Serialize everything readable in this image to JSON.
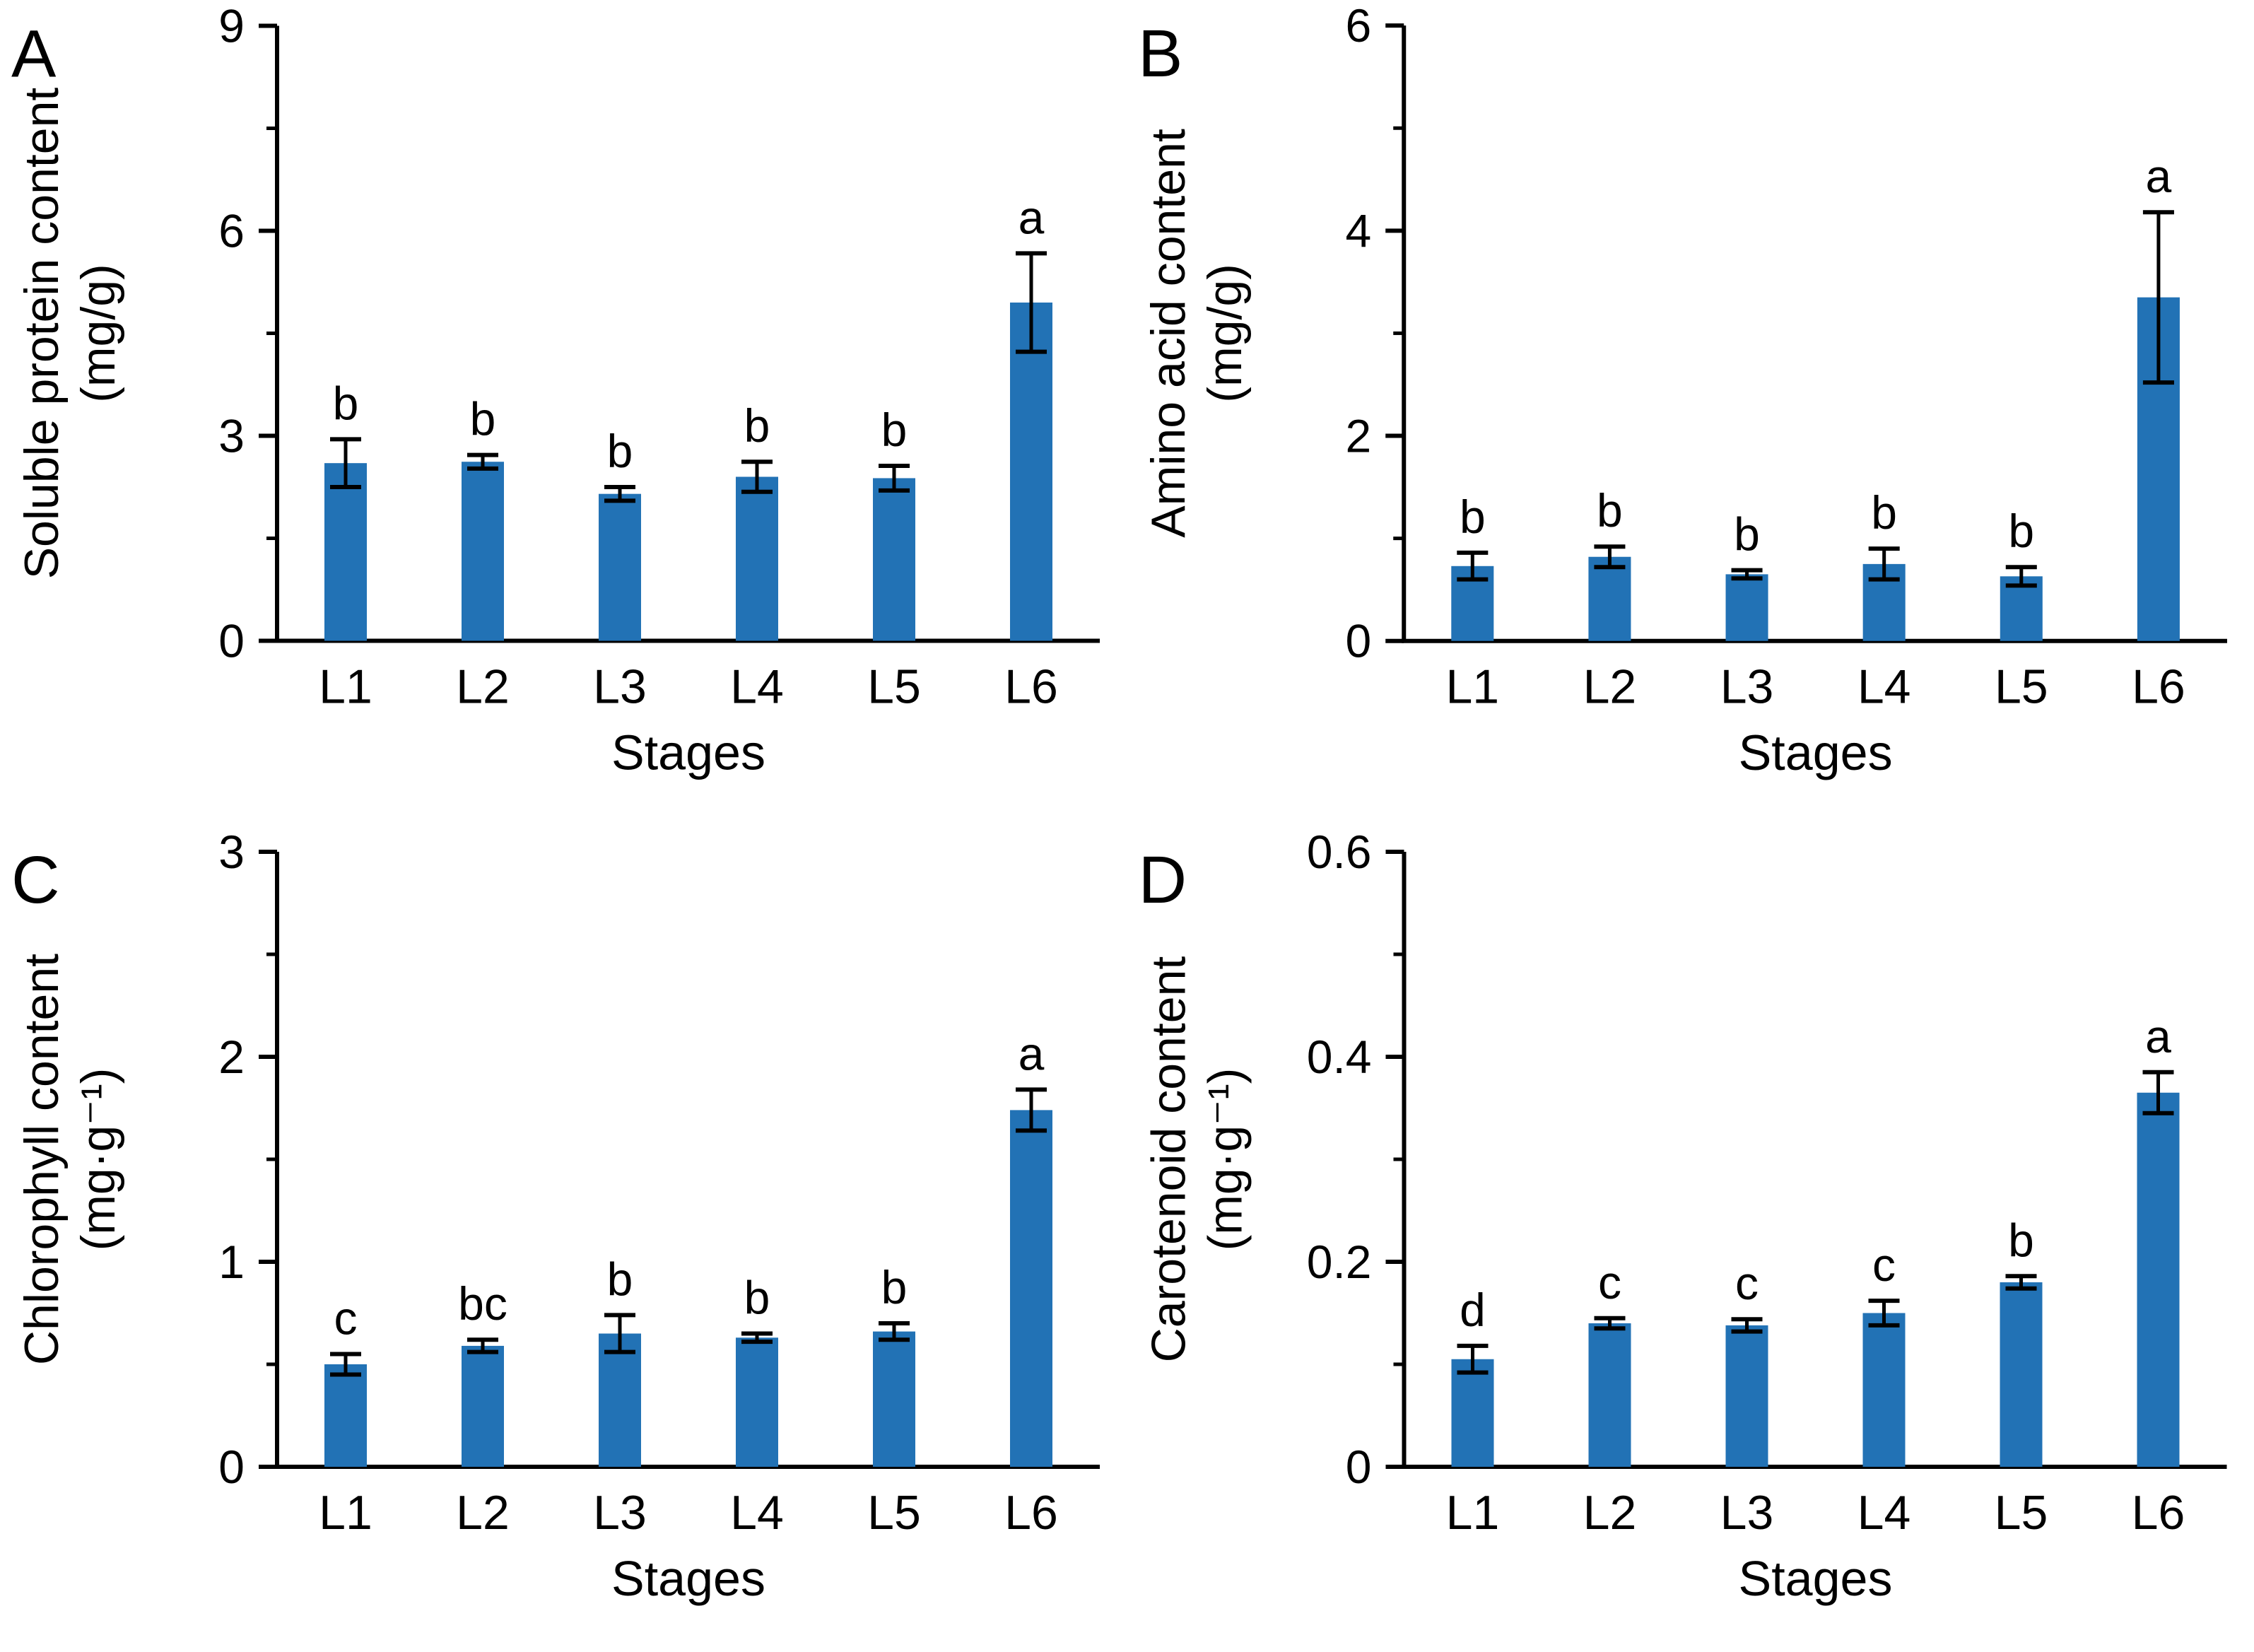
{
  "figure": {
    "background": "#FFFFFF",
    "bar_color": "#2272B5",
    "axis_color": "#000000",
    "error_bar_color": "#000000",
    "text_color": "#000000"
  },
  "chart_data": [
    {
      "type": "bar",
      "panel_label": "A",
      "ylabel_line1": "Soluble protein content",
      "ylabel_line2": "(mg/g)",
      "xlabel": "Stages",
      "categories": [
        "L1",
        "L2",
        "L3",
        "L4",
        "L5",
        "L6"
      ],
      "values": [
        2.6,
        2.62,
        2.15,
        2.4,
        2.38,
        4.95
      ],
      "errors": [
        0.35,
        0.1,
        0.1,
        0.22,
        0.18,
        0.72
      ],
      "sig_letters": [
        "b",
        "b",
        "b",
        "b",
        "b",
        "a"
      ],
      "ylim": [
        0,
        9
      ],
      "yticks": [
        0,
        3,
        6,
        9
      ],
      "yticklabels": [
        "0",
        "3",
        "6",
        "9"
      ],
      "minor_ticks": [
        1.5,
        4.5,
        7.5
      ],
      "legend": "none",
      "grid": "off"
    },
    {
      "type": "bar",
      "panel_label": "B",
      "ylabel_line1": "Amino acid content",
      "ylabel_line2": "(mg/g)",
      "xlabel": "Stages",
      "categories": [
        "L1",
        "L2",
        "L3",
        "L4",
        "L5",
        "L6"
      ],
      "values": [
        0.73,
        0.82,
        0.65,
        0.75,
        0.63,
        3.35
      ],
      "errors": [
        0.13,
        0.1,
        0.04,
        0.15,
        0.09,
        0.83
      ],
      "sig_letters": [
        "b",
        "b",
        "b",
        "b",
        "b",
        "a"
      ],
      "ylim": [
        0,
        6
      ],
      "yticks": [
        0,
        2,
        4,
        6
      ],
      "yticklabels": [
        "0",
        "2",
        "4",
        "6"
      ],
      "minor_ticks": [
        1,
        3,
        5
      ],
      "legend": "none",
      "grid": "off"
    },
    {
      "type": "bar",
      "panel_label": "C",
      "ylabel_line1": "Chlorophyll content",
      "ylabel_line2": "(mg·g⁻¹)",
      "xlabel": "Stages",
      "categories": [
        "L1",
        "L2",
        "L3",
        "L4",
        "L5",
        "L6"
      ],
      "values": [
        0.5,
        0.59,
        0.65,
        0.63,
        0.66,
        1.74
      ],
      "errors": [
        0.05,
        0.03,
        0.09,
        0.02,
        0.04,
        0.1
      ],
      "sig_letters": [
        "c",
        "bc",
        "b",
        "b",
        "b",
        "a"
      ],
      "ylim": [
        0,
        3
      ],
      "yticks": [
        0,
        1,
        2,
        3
      ],
      "yticklabels": [
        "0",
        "1",
        "2",
        "3"
      ],
      "minor_ticks": [
        0.5,
        1.5,
        2.5
      ],
      "legend": "none",
      "grid": "off"
    },
    {
      "type": "bar",
      "panel_label": "D",
      "ylabel_line1": "Carotenoid content",
      "ylabel_line2": "(mg·g⁻¹)",
      "xlabel": "Stages",
      "categories": [
        "L1",
        "L2",
        "L3",
        "L4",
        "L5",
        "L6"
      ],
      "values": [
        0.105,
        0.14,
        0.138,
        0.15,
        0.18,
        0.365
      ],
      "errors": [
        0.013,
        0.005,
        0.006,
        0.012,
        0.006,
        0.02
      ],
      "sig_letters": [
        "d",
        "c",
        "c",
        "c",
        "b",
        "a"
      ],
      "ylim": [
        0,
        0.6
      ],
      "yticks": [
        0,
        0.2,
        0.4,
        0.6
      ],
      "yticklabels": [
        "0",
        "0.2",
        "0.4",
        "0.6"
      ],
      "minor_ticks": [
        0.1,
        0.3,
        0.5
      ],
      "legend": "none",
      "grid": "off"
    }
  ]
}
